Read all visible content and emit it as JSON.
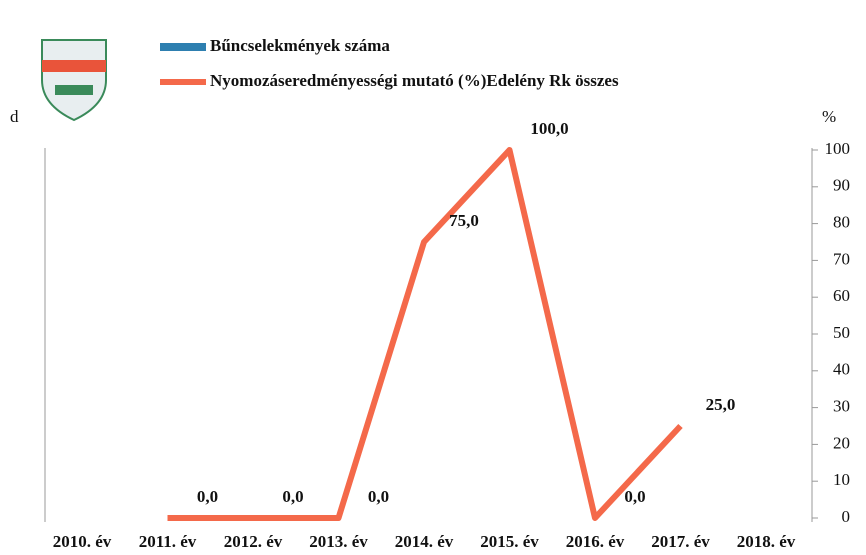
{
  "chart_data": {
    "type": "line",
    "categories": [
      "2010. év",
      "2011. év",
      "2012. év",
      "2013. év",
      "2014. év",
      "2015. év",
      "2016. év",
      "2017. év",
      "2018. év"
    ],
    "series": [
      {
        "name": "Bűncselekmények száma",
        "color": "#2e7fb0",
        "values": [
          null,
          null,
          null,
          null,
          null,
          null,
          null,
          null,
          null
        ]
      },
      {
        "name": "Nyomozáseredményességi mutató (%)Edelény Rk összes",
        "color": "#f4694a",
        "axis": "y2",
        "values": [
          null,
          0,
          0,
          0,
          75,
          100,
          0,
          25,
          null
        ],
        "value_labels": [
          null,
          "0,0",
          "0,0",
          "0,0",
          "75,0",
          "100,0",
          "0,0",
          "25,0",
          null
        ]
      }
    ],
    "ylabel": "d",
    "y2label": "%",
    "y2lim": [
      0,
      100
    ],
    "y2ticks": [
      0,
      10,
      20,
      30,
      40,
      50,
      60,
      70,
      80,
      90,
      100
    ]
  }
}
